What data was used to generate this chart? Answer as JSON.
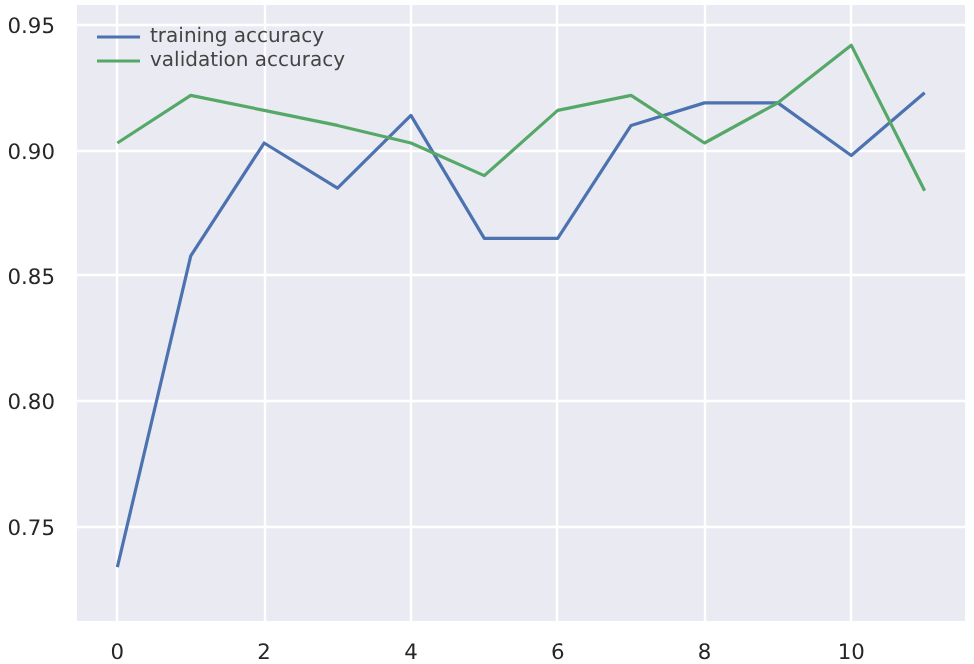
{
  "chart_data": {
    "type": "line",
    "x": [
      0,
      1,
      2,
      3,
      4,
      5,
      6,
      7,
      8,
      9,
      10,
      11
    ],
    "series": [
      {
        "name": "training accuracy",
        "color": "#4c72b0",
        "values": [
          0.734,
          0.858,
          0.903,
          0.885,
          0.914,
          0.865,
          0.865,
          0.91,
          0.919,
          0.919,
          0.898,
          0.923
        ]
      },
      {
        "name": "validation accuracy",
        "color": "#55a868",
        "values": [
          0.903,
          0.922,
          0.916,
          0.91,
          0.903,
          0.89,
          0.916,
          0.922,
          0.903,
          0.919,
          0.942,
          0.884
        ]
      }
    ],
    "xlim": [
      -0.55,
      11.55
    ],
    "ylim": [
      0.7125,
      0.958
    ],
    "xticks": [
      0,
      2,
      4,
      6,
      8,
      10
    ],
    "yticks": [
      {
        "value": 0.75,
        "label": "0.75"
      },
      {
        "value": 0.8,
        "label": "0.80"
      },
      {
        "value": 0.85,
        "label": "0.85"
      },
      {
        "value": 0.9,
        "label": "0.90"
      },
      {
        "value": 0.95,
        "label": "0.95"
      }
    ],
    "grid": true,
    "legend": "top left",
    "marker": "none",
    "line_style": "solid"
  }
}
